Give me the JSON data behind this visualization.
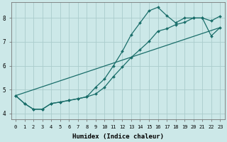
{
  "xlabel": "Humidex (Indice chaleur)",
  "background_color": "#cce8e8",
  "grid_color": "#aacccc",
  "line_color": "#1a6e6a",
  "xlim": [
    -0.5,
    23.5
  ],
  "ylim": [
    3.75,
    8.65
  ],
  "yticks": [
    4,
    5,
    6,
    7,
    8
  ],
  "xticks": [
    0,
    1,
    2,
    3,
    4,
    5,
    6,
    7,
    8,
    9,
    10,
    11,
    12,
    13,
    14,
    15,
    16,
    17,
    18,
    19,
    20,
    21,
    22,
    23
  ],
  "series1_x": [
    0,
    1,
    2,
    3,
    4,
    5,
    6,
    7,
    8,
    9,
    10,
    11,
    12,
    13,
    14,
    15,
    16,
    17,
    18,
    19,
    20,
    21,
    22,
    23
  ],
  "series1_y": [
    4.75,
    4.42,
    4.18,
    4.18,
    4.42,
    4.48,
    4.55,
    4.62,
    4.7,
    5.1,
    5.45,
    6.0,
    6.6,
    7.3,
    7.8,
    8.3,
    8.45,
    8.1,
    7.8,
    8.0,
    8.0,
    8.0,
    7.25,
    7.6
  ],
  "series2_x": [
    0,
    1,
    2,
    3,
    4,
    5,
    6,
    7,
    8,
    9,
    10,
    11,
    12,
    13,
    14,
    15,
    16,
    17,
    18,
    19,
    20,
    21,
    22,
    23
  ],
  "series2_y": [
    4.75,
    4.42,
    4.18,
    4.18,
    4.42,
    4.48,
    4.55,
    4.62,
    4.7,
    4.82,
    5.1,
    5.55,
    5.95,
    6.35,
    6.68,
    7.02,
    7.45,
    7.55,
    7.72,
    7.82,
    8.0,
    8.0,
    7.88,
    8.08
  ],
  "series3_x": [
    0,
    23
  ],
  "series3_y": [
    4.75,
    7.6
  ],
  "marker_size": 2.0,
  "line_width": 0.9,
  "tick_fontsize": 5.0,
  "xlabel_fontsize": 6.5
}
